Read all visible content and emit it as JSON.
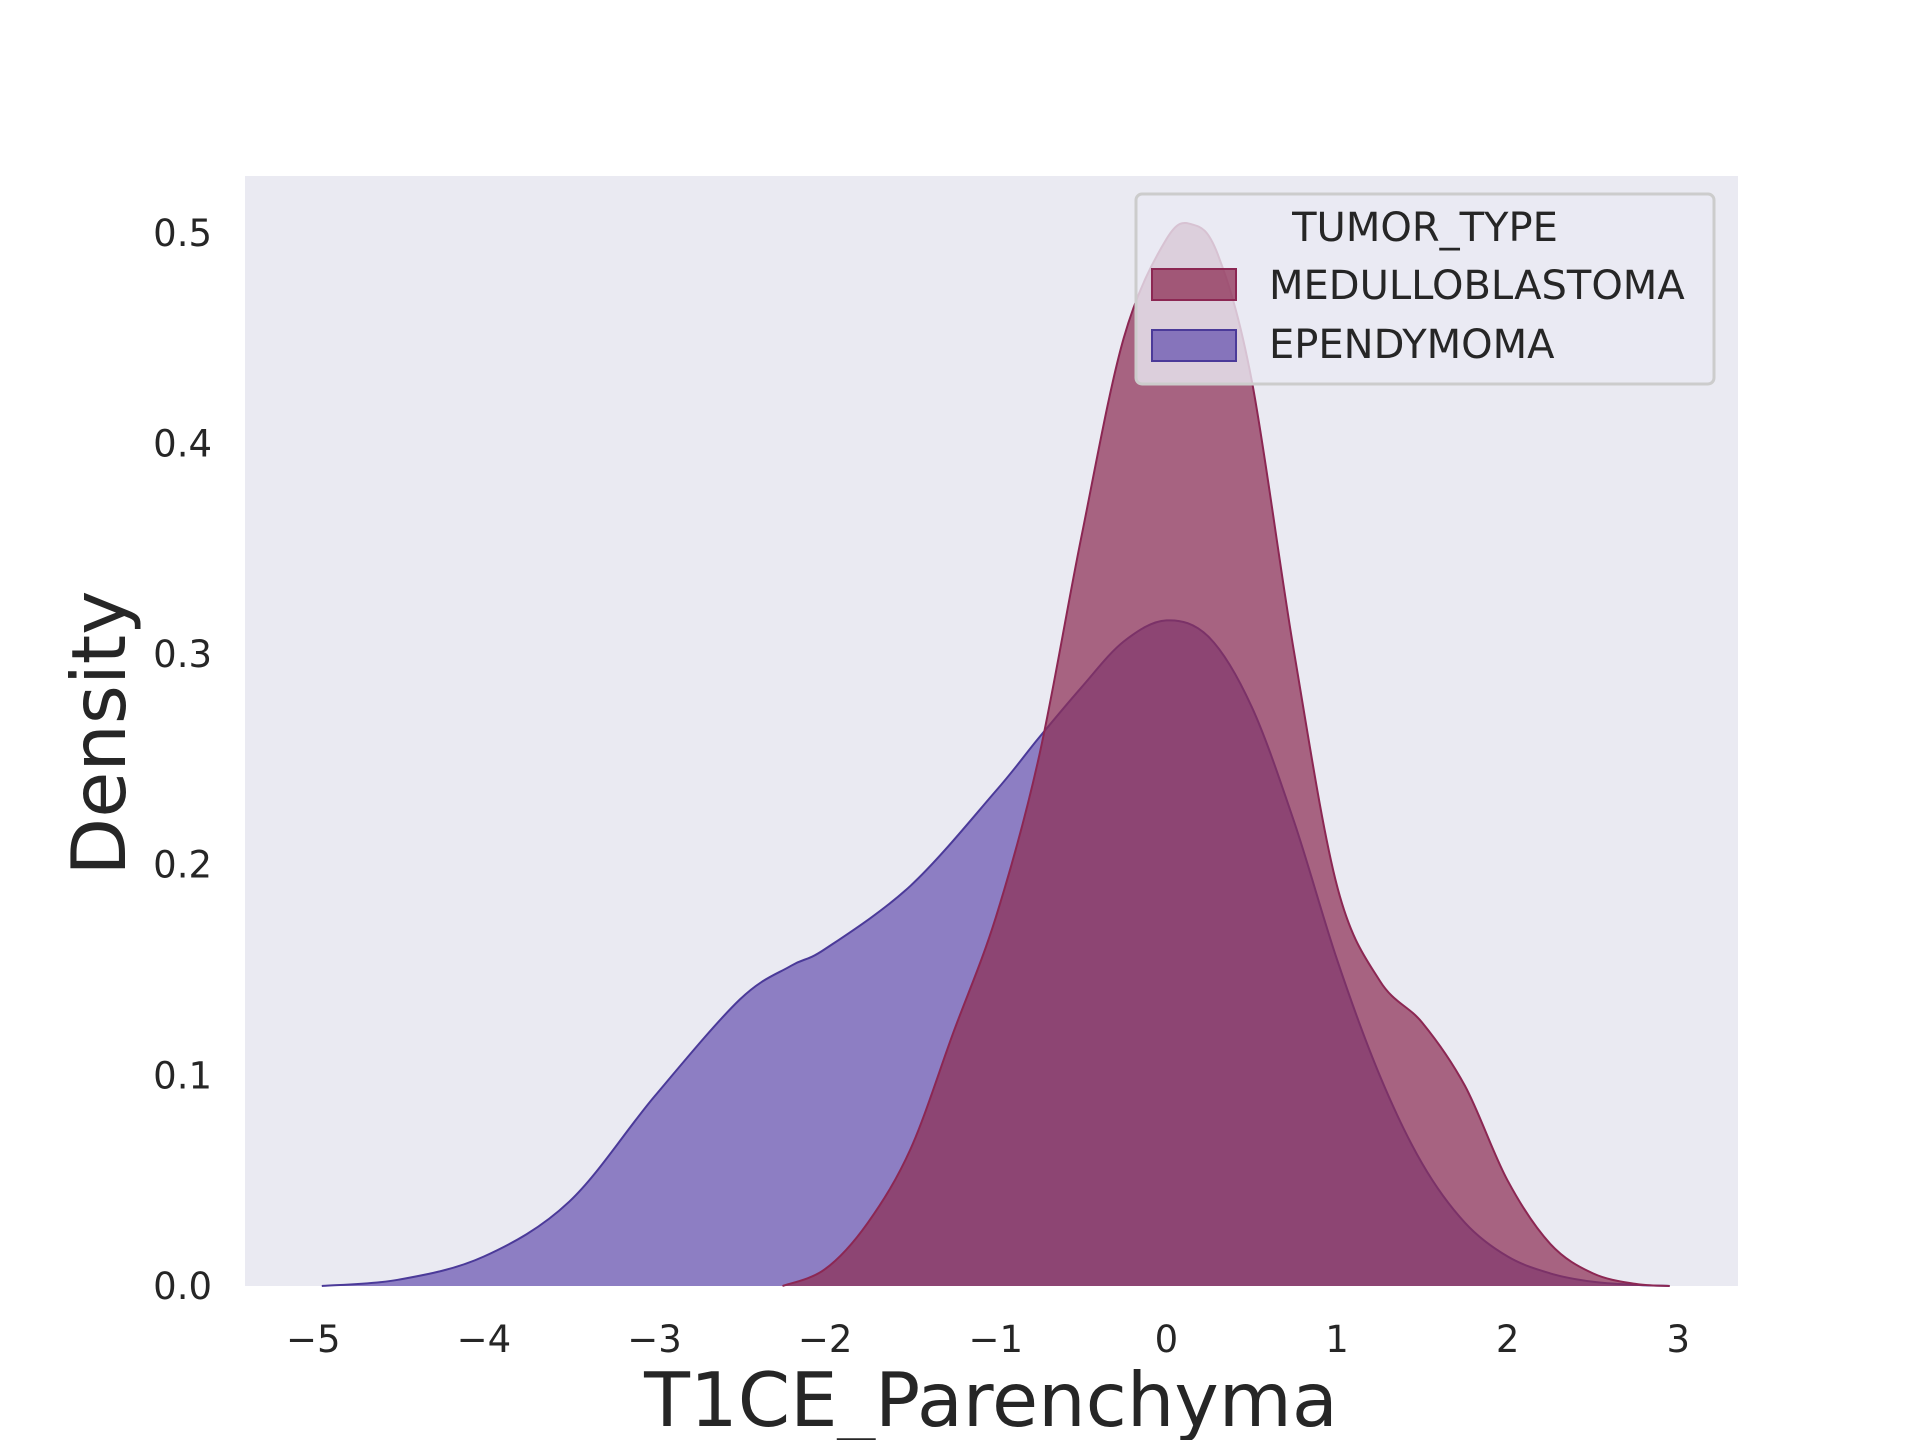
{
  "chart_data": {
    "type": "area",
    "xlabel": "T1CE_Parenchyma",
    "ylabel": "Density",
    "xlim": [
      -5.4,
      3.35
    ],
    "ylim": [
      0,
      0.527
    ],
    "x_ticks": [
      -5,
      -4,
      -3,
      -2,
      -1,
      0,
      1,
      2,
      3
    ],
    "x_tick_labels": [
      "−5",
      "−4",
      "−3",
      "−2",
      "−1",
      "0",
      "1",
      "2",
      "3"
    ],
    "y_ticks": [
      0.0,
      0.1,
      0.2,
      0.3,
      0.4,
      0.5
    ],
    "y_tick_labels": [
      "0.0",
      "0.1",
      "0.2",
      "0.3",
      "0.4",
      "0.5"
    ],
    "grid": false,
    "background": "#eaeaf2",
    "legend": {
      "title": "TUMOR_TYPE",
      "placement": "top-right"
    },
    "series": [
      {
        "name": "EPENDYMOMA",
        "fill": "#6a55b0",
        "stroke": "#4b3a99",
        "x": [
          -4.95,
          -4.5,
          -4.0,
          -3.5,
          -3.0,
          -2.5,
          -2.2,
          -2.0,
          -1.5,
          -1.0,
          -0.75,
          -0.5,
          -0.25,
          0.0,
          0.25,
          0.5,
          0.75,
          1.0,
          1.25,
          1.5,
          1.75,
          2.0,
          2.25,
          2.5,
          2.75,
          2.95
        ],
        "y": [
          0.0,
          0.003,
          0.014,
          0.04,
          0.09,
          0.136,
          0.152,
          0.16,
          0.19,
          0.235,
          0.26,
          0.284,
          0.306,
          0.316,
          0.308,
          0.275,
          0.22,
          0.155,
          0.1,
          0.058,
          0.03,
          0.014,
          0.006,
          0.002,
          0.0005,
          0.0
        ]
      },
      {
        "name": "MEDULLOBLASTOMA",
        "fill": "#8e2f55",
        "stroke": "#8c2753",
        "x": [
          -2.25,
          -2.0,
          -1.75,
          -1.5,
          -1.25,
          -1.0,
          -0.75,
          -0.5,
          -0.25,
          0.0,
          0.15,
          0.3,
          0.5,
          0.75,
          1.0,
          1.25,
          1.5,
          1.75,
          2.0,
          2.25,
          2.5,
          2.75,
          2.95
        ],
        "y": [
          0.0,
          0.008,
          0.03,
          0.065,
          0.12,
          0.175,
          0.25,
          0.355,
          0.45,
          0.497,
          0.504,
          0.49,
          0.43,
          0.3,
          0.19,
          0.145,
          0.125,
          0.095,
          0.05,
          0.02,
          0.006,
          0.001,
          0.0
        ]
      }
    ]
  }
}
